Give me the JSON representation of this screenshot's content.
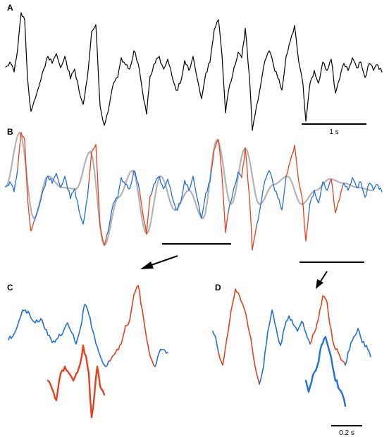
{
  "panels": [
    {
      "id": "A",
      "label": "A"
    },
    {
      "id": "B",
      "label": "B"
    },
    {
      "id": "C",
      "label": "C"
    },
    {
      "id": "D",
      "label": "D"
    }
  ],
  "scale_bars": {
    "a": {
      "label": "1 s"
    },
    "d": {
      "label": "0.2 s"
    }
  },
  "colors": {
    "trace": "#000000",
    "fit": "#b3b3b3",
    "background_segment": "#1f6fdc",
    "event_segment": "#e8401c",
    "annotation": "#000000"
  },
  "chart_data": [
    {
      "panel": "A",
      "type": "line",
      "series": [
        {
          "segments": [
            "black"
          ]
        }
      ],
      "grid": false,
      "legend": "none"
    },
    {
      "panel": "B",
      "type": "line",
      "series": [
        {
          "segments": [
            "gray"
          ]
        },
        {
          "segments": [
            "blue",
            "red"
          ]
        }
      ],
      "grid": false,
      "legend": "none"
    },
    {
      "panel": "C",
      "type": "line",
      "series": [
        {
          "segments": [
            "blue",
            "red"
          ]
        },
        {
          "segments": [
            "red"
          ]
        }
      ],
      "grid": false,
      "legend": "none"
    },
    {
      "panel": "D",
      "type": "line",
      "series": [
        {
          "segments": [
            "blue",
            "red"
          ]
        },
        {
          "segments": [
            "blue"
          ]
        }
      ],
      "grid": false,
      "legend": "none"
    }
  ]
}
